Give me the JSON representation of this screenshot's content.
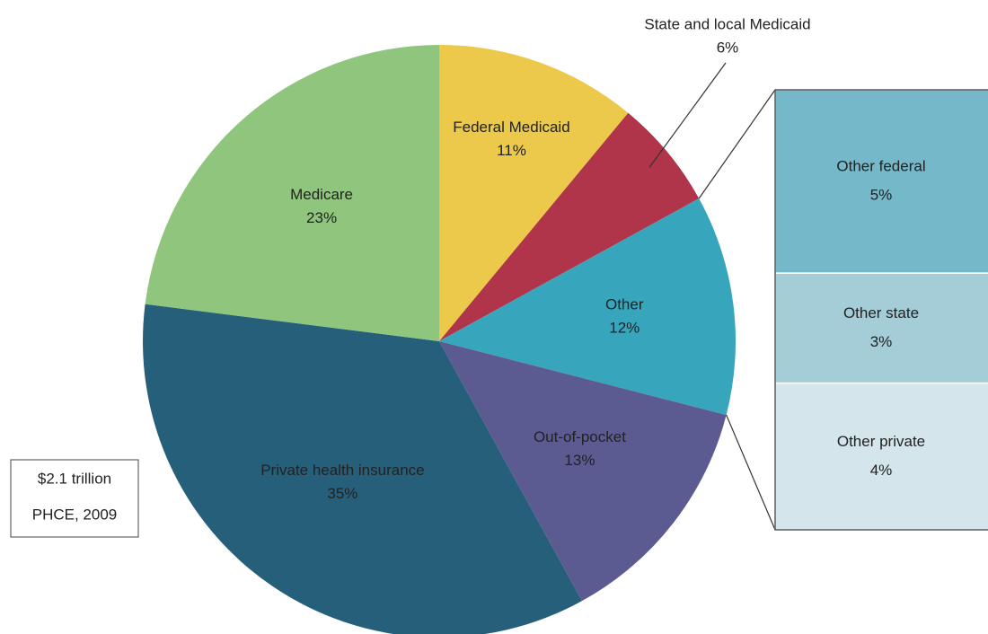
{
  "chart_data": {
    "type": "pie",
    "categories": [
      "Federal Medicaid",
      "State and local Medicaid",
      "Other",
      "Out-of-pocket",
      "Private health insurance",
      "Medicare"
    ],
    "values": [
      11,
      6,
      12,
      13,
      35,
      23
    ],
    "value_labels": [
      "11%",
      "6%",
      "12%",
      "13%",
      "35%",
      "23%"
    ],
    "colors": [
      "#ecc94b",
      "#b0344a",
      "#37a6bd",
      "#5b5b92",
      "#265f7a",
      "#8fc57d"
    ],
    "breakdown": {
      "categories": [
        "Other federal",
        "Other state",
        "Other private"
      ],
      "values": [
        5,
        3,
        4
      ],
      "value_labels": [
        "5%",
        "3%",
        "4%"
      ],
      "colors": [
        "#75b8c9",
        "#a5cdd8",
        "#d4e5eb"
      ]
    },
    "annotation": [
      "$2.1 trillion",
      "PHCE, 2009"
    ]
  }
}
